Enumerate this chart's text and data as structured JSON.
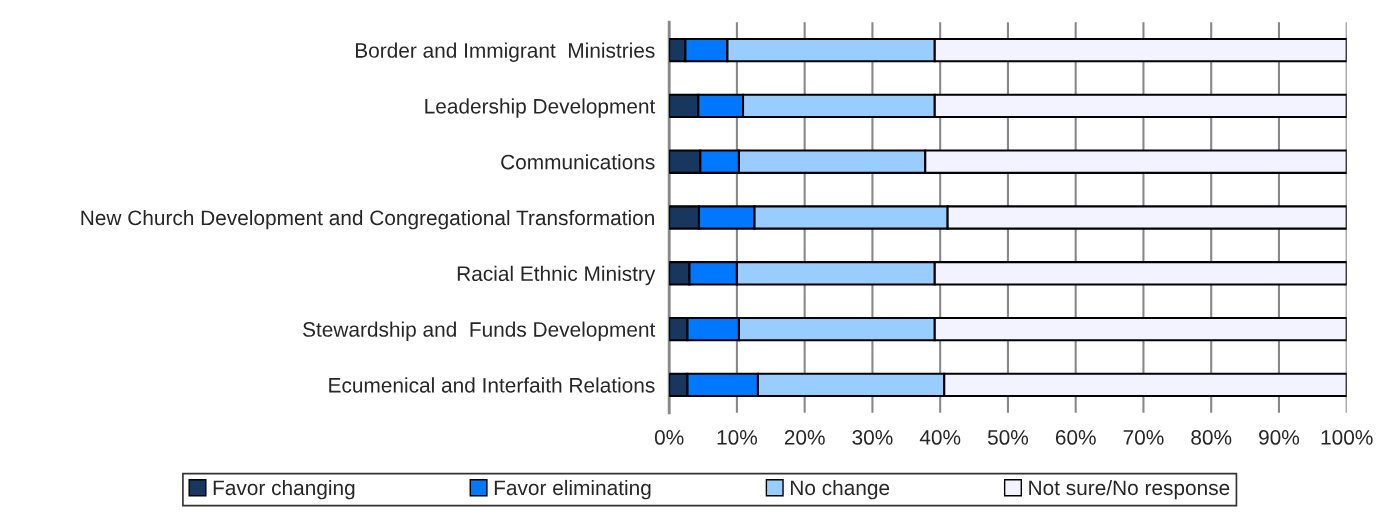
{
  "chart_data": {
    "type": "bar",
    "orientation": "horizontal",
    "stacked": true,
    "categories": [
      "Border and Immigrant  Ministries",
      "Leadership Development",
      "Communications",
      "New Church Development and Congregational Transformation",
      "Racial Ethnic Ministry",
      "Stewardship and  Funds Development",
      "Ecumenical and Interfaith Relations"
    ],
    "series": [
      {
        "name": "Favor changing",
        "color": "#17375e",
        "values": [
          2.4,
          4.3,
          4.6,
          4.4,
          3.0,
          2.7,
          2.7
        ]
      },
      {
        "name": "Favor eliminating",
        "color": "#0077ff",
        "values": [
          6.2,
          6.6,
          5.7,
          8.2,
          7.0,
          7.6,
          10.4
        ]
      },
      {
        "name": "No change",
        "color": "#99ccff",
        "values": [
          30.6,
          28.3,
          27.5,
          28.5,
          29.2,
          28.9,
          27.5
        ]
      },
      {
        "name": "Not sure/No response",
        "color": "#f3f2ff",
        "values": [
          60.8,
          60.8,
          62.2,
          58.9,
          60.8,
          60.8,
          59.4
        ]
      }
    ],
    "xlim": [
      0,
      100
    ],
    "xticks": [
      {
        "value": 0,
        "label": "0%"
      },
      {
        "value": 10,
        "label": "10%"
      },
      {
        "value": 20,
        "label": "20%"
      },
      {
        "value": 30,
        "label": "30%"
      },
      {
        "value": 40,
        "label": "40%"
      },
      {
        "value": 50,
        "label": "50%"
      },
      {
        "value": 60,
        "label": "60%"
      },
      {
        "value": 70,
        "label": "70%"
      },
      {
        "value": 80,
        "label": "80%"
      },
      {
        "value": 90,
        "label": "90%"
      },
      {
        "value": 100,
        "label": "100%"
      }
    ],
    "grid": "x",
    "legend": "bottom"
  }
}
